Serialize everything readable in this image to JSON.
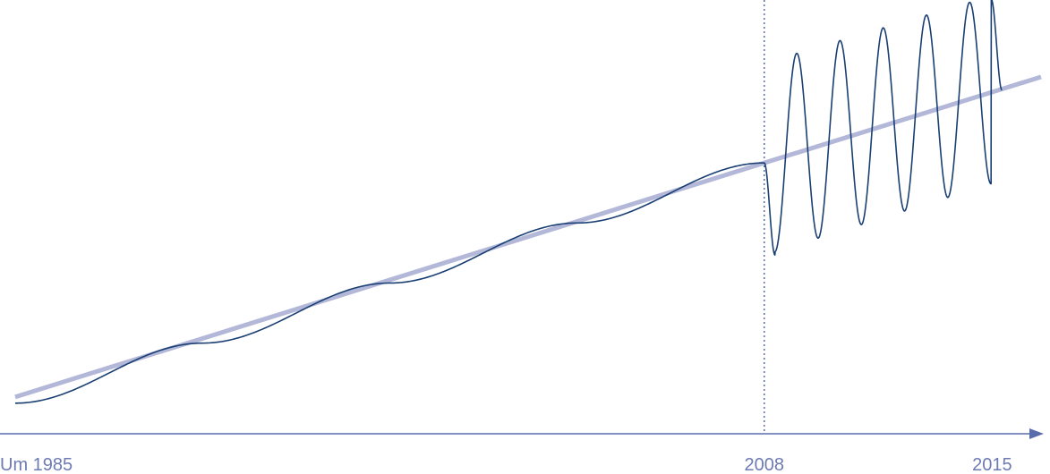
{
  "chart_data": {
    "type": "line",
    "title": "",
    "xlabel": "",
    "ylabel": "",
    "x_tick_labels": [
      {
        "label": "Um 1985",
        "x": 1985
      },
      {
        "label": "2008",
        "x": 2008
      },
      {
        "label": "2015",
        "x": 2015
      }
    ],
    "xlim": [
      1985,
      2016.5
    ],
    "ylim": [
      0,
      100
    ],
    "grid": false,
    "legend": "none",
    "reference_line": {
      "x": 2008,
      "style": "dotted"
    },
    "series": [
      {
        "role": "trend",
        "color": "#b3b7d8",
        "points": [
          {
            "x": 1985,
            "y": 3.5
          },
          {
            "x": 2008,
            "y": 60.4
          },
          {
            "x": 2016.5,
            "y": 81.3
          }
        ]
      },
      {
        "role": "actual",
        "color": "#1a3f73",
        "pre_2008": {
          "start": {
            "x": 1985,
            "y": 2
          },
          "end": {
            "x": 2008,
            "y": 60.4
          },
          "steps": 4
        },
        "post_2008": {
          "start": {
            "x": 2008,
            "y": 60.4
          },
          "end": {
            "x": 2015.3,
            "y": 78.1
          },
          "first_trough": 38,
          "first_peak": 84.7,
          "trough_step": 3.3,
          "peak_step": 3.1,
          "cycles": 5.5
        }
      }
    ],
    "colors": {
      "axis": "#5a6dab",
      "tick_text": "#6d7bb3",
      "reference_line": "#5a6dab"
    }
  }
}
